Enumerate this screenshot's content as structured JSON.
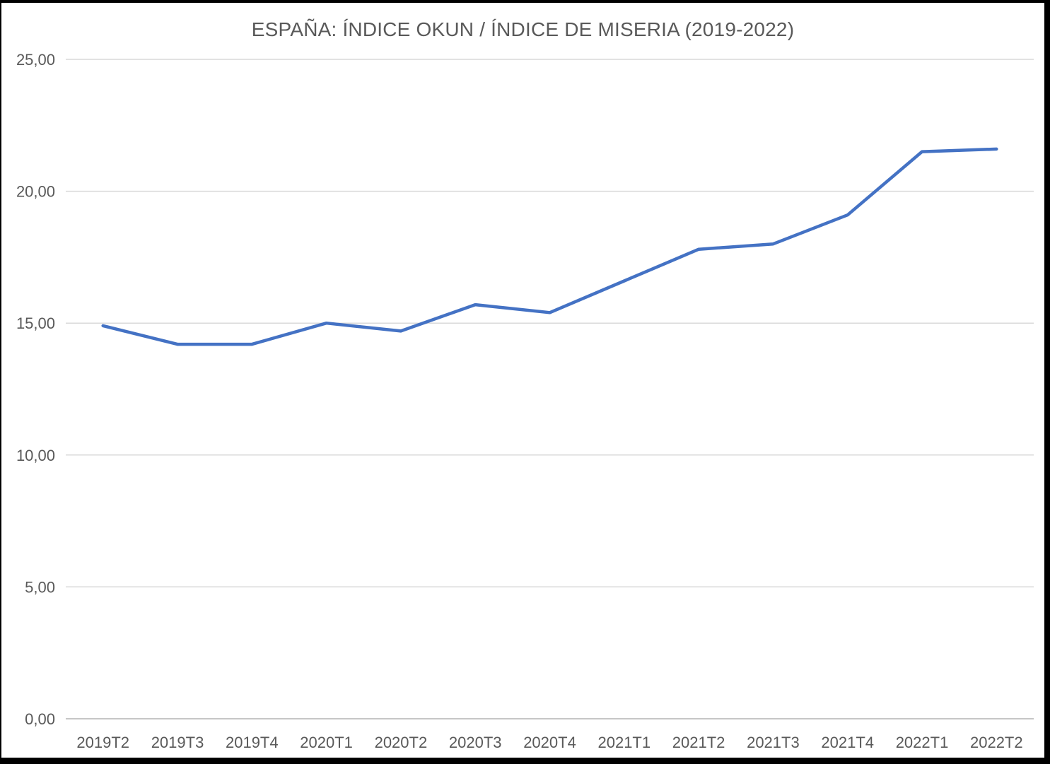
{
  "window": {
    "frame_color": "#000000",
    "background": "#ffffff"
  },
  "chart_data": {
    "type": "line",
    "title": "ESPAÑA: ÍNDICE OKUN / ÍNDICE DE MISERIA (2019-2022)",
    "categories": [
      "2019T2",
      "2019T3",
      "2019T4",
      "2020T1",
      "2020T2",
      "2020T3",
      "2020T4",
      "2021T1",
      "2021T2",
      "2021T3",
      "2021T4",
      "2022T1",
      "2022T2"
    ],
    "values": [
      14.9,
      14.2,
      14.2,
      15.0,
      14.7,
      15.7,
      15.4,
      16.6,
      17.8,
      18.0,
      19.1,
      21.5,
      21.6
    ],
    "xlabel": "",
    "ylabel": "",
    "ylim": [
      0,
      25
    ],
    "ytick_interval": 5,
    "ytick_labels": [
      "0,00",
      "5,00",
      "10,00",
      "15,00",
      "20,00",
      "25,00"
    ],
    "grid": true,
    "legend_position": "none",
    "line_color": "#4472C4",
    "gridline_color": "#D9D9D9",
    "axis_line_color": "#C6C6C6",
    "label_color": "#595959",
    "title_color": "#595959"
  }
}
